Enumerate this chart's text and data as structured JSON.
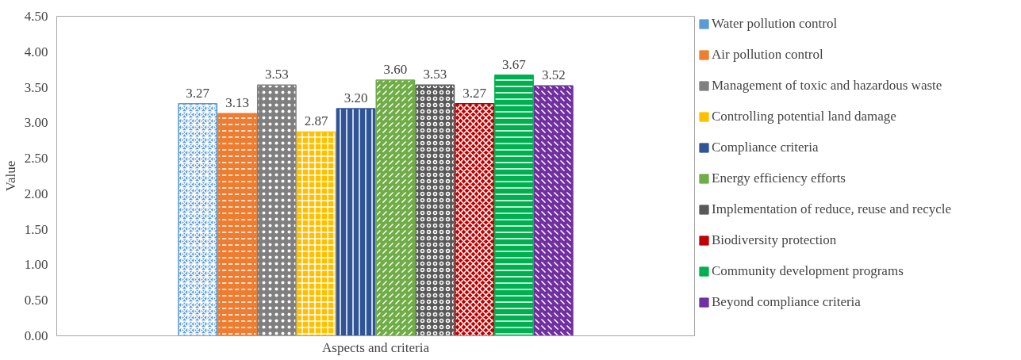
{
  "chart_data": {
    "type": "bar",
    "xlabel": "Aspects and criteria",
    "ylabel": "Value",
    "categories": [
      null
    ],
    "series": [
      {
        "name": "Water pollution control",
        "color": "#5b9bd5",
        "values": [
          3.27
        ]
      },
      {
        "name": "Air pollution control",
        "color": "#ed7d31",
        "values": [
          3.13
        ]
      },
      {
        "name": "Management of toxic and hazardous waste",
        "color": "#7f7f7f",
        "values": [
          3.53
        ]
      },
      {
        "name": "Controlling potential land damage",
        "color": "#ffc000",
        "values": [
          2.87
        ]
      },
      {
        "name": "Compliance criteria",
        "color": "#2f5597",
        "values": [
          3.2
        ]
      },
      {
        "name": "Energy efficiency efforts",
        "color": "#70ad47",
        "values": [
          3.6
        ]
      },
      {
        "name": "Implementation of reduce, reuse and recycle",
        "color": "#595959",
        "values": [
          3.53
        ]
      },
      {
        "name": "Biodiversity protection",
        "color": "#c00000",
        "values": [
          3.27
        ]
      },
      {
        "name": "Community development programs",
        "color": "#00b050",
        "values": [
          3.67
        ]
      },
      {
        "name": "Beyond compliance criteria",
        "color": "#7030a0",
        "values": [
          3.52
        ]
      }
    ],
    "ylim": [
      0,
      4.5
    ],
    "yticks": [
      {
        "value": 0,
        "label": "0.00"
      },
      {
        "value": 0.5,
        "label": "0.50"
      },
      {
        "value": 1,
        "label": "1.00"
      },
      {
        "value": 1.5,
        "label": "1.50"
      },
      {
        "value": 2,
        "label": "2.00"
      },
      {
        "value": 2.5,
        "label": "2.50"
      },
      {
        "value": 3,
        "label": "3.00"
      },
      {
        "value": 3.5,
        "label": "3.50"
      },
      {
        "value": 4,
        "label": "4.00"
      },
      {
        "value": 4.5,
        "label": "4.50"
      }
    ],
    "value_labels": [
      "3.27",
      "3.13",
      "3.53",
      "2.87",
      "3.20",
      "3.60",
      "3.53",
      "3.27",
      "3.67",
      "3.52"
    ],
    "legend": "right",
    "grid": false
  }
}
